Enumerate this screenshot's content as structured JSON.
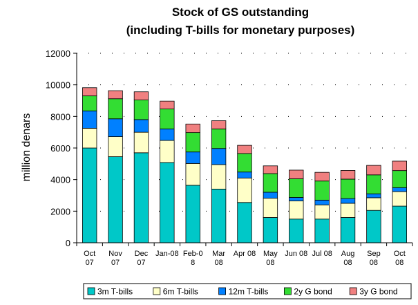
{
  "chart_data": {
    "type": "bar",
    "stacked": true,
    "title": "Stock of GS outstanding",
    "subtitle": "(including T-bills for monetary purposes)",
    "ylabel": "million denars",
    "xlabel": "",
    "ylim": [
      0,
      12000
    ],
    "yticks": [
      0,
      2000,
      4000,
      6000,
      8000,
      10000,
      12000
    ],
    "grid": true,
    "legend_position": "bottom",
    "categories": [
      [
        "Oct",
        "07"
      ],
      [
        "Nov",
        "07"
      ],
      [
        "Dec",
        "07"
      ],
      [
        "Jan-08"
      ],
      [
        "Feb-0",
        "8"
      ],
      [
        "Mar",
        "08"
      ],
      [
        "Apr 08"
      ],
      [
        "May",
        "08"
      ],
      [
        "Jun 08"
      ],
      [
        "Jul 08"
      ],
      [
        "Aug",
        "08"
      ],
      [
        "Sep",
        "08"
      ],
      [
        "Oct",
        "08"
      ]
    ],
    "series": [
      {
        "name": "3m T-bills",
        "color": "#00c8c8",
        "values": [
          6000,
          5450,
          5700,
          5080,
          3640,
          3400,
          2550,
          1600,
          1500,
          1500,
          1600,
          2050,
          2320
        ]
      },
      {
        "name": "6m T-bills",
        "color": "#ffffc8",
        "values": [
          1250,
          1270,
          1300,
          1400,
          1380,
          1550,
          1550,
          1220,
          1150,
          900,
          900,
          800,
          920
        ]
      },
      {
        "name": "12m T-bills",
        "color": "#0080ff",
        "values": [
          1100,
          1130,
          800,
          730,
          730,
          1020,
          380,
          380,
          220,
          300,
          300,
          250,
          250
        ]
      },
      {
        "name": "2y G bond",
        "color": "#33dd33",
        "values": [
          950,
          1270,
          1240,
          1260,
          1230,
          1240,
          1170,
          1180,
          1180,
          1210,
          1230,
          1200,
          1080
        ]
      },
      {
        "name": "3y G bond",
        "color": "#f08080",
        "values": [
          520,
          510,
          520,
          500,
          540,
          520,
          520,
          490,
          550,
          550,
          550,
          600,
          600
        ]
      }
    ]
  }
}
